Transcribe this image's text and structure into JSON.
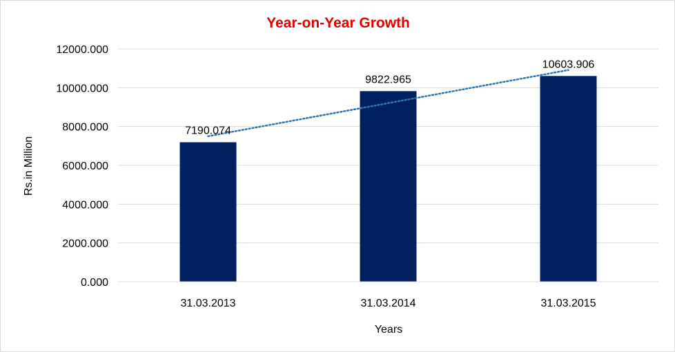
{
  "chart_data": {
    "type": "bar",
    "title": "Year-on-Year Growth",
    "xlabel": "Years",
    "ylabel": "Rs.in Million",
    "categories": [
      "31.03.2013",
      "31.03.2014",
      "31.03.2015"
    ],
    "series": [
      {
        "values": [
          7190.074,
          9822.965,
          10603.906
        ],
        "data_labels": [
          "7190.074",
          "9822.965",
          "10603.906"
        ],
        "color": "#002060"
      }
    ],
    "trendline": {
      "type": "linear",
      "style": "dotted",
      "color": "#2e75b6"
    },
    "ylim": [
      0,
      12000
    ],
    "yticks": [
      0,
      2000,
      4000,
      6000,
      8000,
      10000,
      12000
    ],
    "ytick_labels": [
      "0.000",
      "2000.000",
      "4000.000",
      "6000.000",
      "8000.000",
      "10000.000",
      "12000.000"
    ],
    "grid": true,
    "legend": "none",
    "colors": {
      "title": "#e00000",
      "bar": "#002060",
      "trendline": "#2e75b6",
      "gridline": "#d9d9d9"
    }
  }
}
